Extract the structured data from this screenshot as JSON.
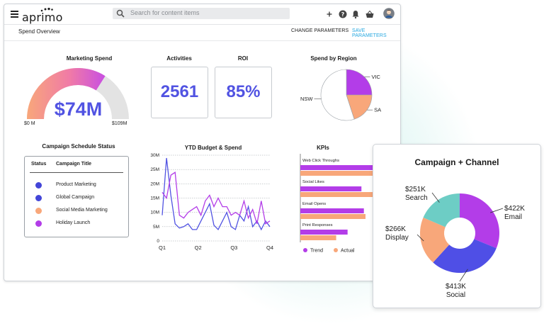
{
  "app": {
    "logo_text": "aprimo",
    "search_placeholder": "Search for content items",
    "icons": [
      "menu-icon",
      "search-icon",
      "add-icon",
      "help-icon",
      "notifications-icon",
      "basket-icon",
      "user-avatar"
    ]
  },
  "subbar": {
    "title": "Spend Overview",
    "change_params": "CHANGE PARAMETERS",
    "save_params": "SAVE PARAMETERS"
  },
  "colors": {
    "accent_blue": "#5153e2",
    "link_blue": "#27a8e0",
    "purple": "#b33de8",
    "orange": "#f8a77a",
    "teal": "#6dcdc5",
    "gauge_gray": "#e3e3e3"
  },
  "marketing_spend": {
    "title": "Marketing Spend",
    "value": "$74M",
    "min_label": "$0 M",
    "max_label": "$109M",
    "fraction": 0.68
  },
  "activities": {
    "title": "Activities",
    "value": "2561"
  },
  "roi": {
    "title": "ROI",
    "value": "85%"
  },
  "campaign_schedule": {
    "title": "Campaign Schedule Status",
    "col_status": "Status",
    "col_title": "Campaign Title",
    "rows": [
      {
        "title": "Product Marketing",
        "color": "#4345d8"
      },
      {
        "title": "Global Campaign",
        "color": "#4345d8"
      },
      {
        "title": "Social Media Marketing",
        "color": "#f8a77a"
      },
      {
        "title": "Holiday Launch",
        "color": "#b33de8"
      }
    ]
  },
  "chart_data": [
    {
      "type": "pie",
      "title": "Spend by Region",
      "labels": [
        "VIC",
        "SA",
        "NSW"
      ],
      "values": [
        25,
        20,
        55
      ],
      "colors": [
        "#b33de8",
        "#f8a77a",
        "#ffffff"
      ]
    },
    {
      "type": "line",
      "title": "YTD Budget & Spend",
      "x_ticks": [
        "Q1",
        "Q2",
        "Q3",
        "Q4"
      ],
      "y_ticks": [
        "30M",
        "25M",
        "20M",
        "15M",
        "10M",
        "5M",
        "0"
      ],
      "ylim": [
        0,
        30
      ],
      "grid": true,
      "series": [
        {
          "name": "",
          "color": "#5153e2",
          "values": [
            9,
            29,
            16,
            6,
            4.5,
            5,
            6,
            4,
            4,
            7,
            10,
            13,
            5.5,
            4,
            7,
            10,
            5,
            4,
            9,
            7,
            12,
            5,
            7,
            4,
            7,
            5
          ]
        },
        {
          "name": "",
          "color": "#b33de8",
          "values": [
            17,
            15,
            23,
            24,
            9,
            8,
            10,
            11,
            12,
            9,
            14,
            16,
            12,
            15,
            12,
            12,
            9,
            10,
            9,
            14,
            8,
            11,
            6,
            14,
            6,
            7
          ]
        }
      ]
    },
    {
      "type": "bar",
      "title": "KPIs",
      "orientation": "horizontal",
      "categories": [
        "Web Click Throughs",
        "Social Likes",
        "Email Opens",
        "Print Responses"
      ],
      "series": [
        {
          "name": "Trend",
          "color": "#b33de8",
          "values": [
            100,
            75,
            78,
            58
          ]
        },
        {
          "name": "Actual",
          "color": "#f8a77a",
          "values": [
            95,
            100,
            80,
            44
          ]
        }
      ],
      "legend": "bottom"
    },
    {
      "type": "pie",
      "title": "Campaign + Channel",
      "donut": true,
      "labels": [
        "Email",
        "Social",
        "Display",
        "Search"
      ],
      "values": [
        422,
        413,
        266,
        251
      ],
      "value_labels": [
        "$422K",
        "$413K",
        "$266K",
        "$251K"
      ],
      "colors": [
        "#b33de8",
        "#4f4fe6",
        "#f8a77a",
        "#6dcdc5"
      ]
    }
  ]
}
